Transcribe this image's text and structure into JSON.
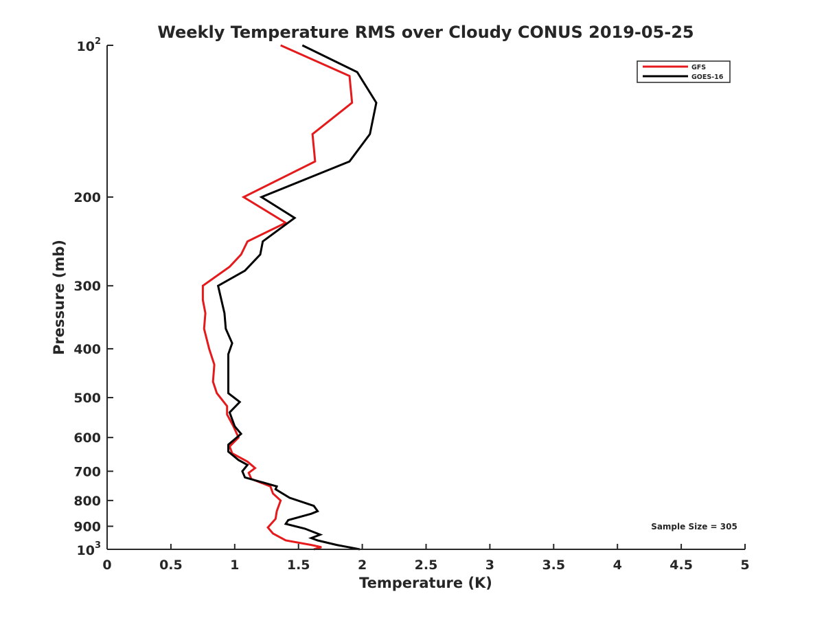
{
  "chart_data": {
    "type": "line",
    "title": "Weekly Temperature RMS over Cloudy CONUS 2019-05-25",
    "xlabel": "Temperature (K)",
    "ylabel": "Pressure (mb)",
    "xlim": [
      0,
      5
    ],
    "ylim": [
      100,
      1000
    ],
    "y_scale": "log",
    "y_reversed": true,
    "grid": false,
    "legend_position": "top-right",
    "x_ticks": [
      {
        "value": 0,
        "label": "0"
      },
      {
        "value": 0.5,
        "label": "0.5"
      },
      {
        "value": 1,
        "label": "1"
      },
      {
        "value": 1.5,
        "label": "1.5"
      },
      {
        "value": 2,
        "label": "2"
      },
      {
        "value": 2.5,
        "label": "2.5"
      },
      {
        "value": 3,
        "label": "3"
      },
      {
        "value": 3.5,
        "label": "3.5"
      },
      {
        "value": 4,
        "label": "4"
      },
      {
        "value": 4.5,
        "label": "4.5"
      },
      {
        "value": 5,
        "label": "5"
      }
    ],
    "y_ticks": [
      {
        "value": 100,
        "base": "10",
        "exp": "2"
      },
      {
        "value": 200,
        "label": "200"
      },
      {
        "value": 300,
        "label": "300"
      },
      {
        "value": 400,
        "label": "400"
      },
      {
        "value": 500,
        "label": "500"
      },
      {
        "value": 600,
        "label": "600"
      },
      {
        "value": 700,
        "label": "700"
      },
      {
        "value": 800,
        "label": "800"
      },
      {
        "value": 900,
        "label": "900"
      },
      {
        "value": 1000,
        "base": "10",
        "exp": "3"
      }
    ],
    "annotation": "Sample Size = 305",
    "series": [
      {
        "name": "GFS",
        "color": "#e41a1c",
        "points": [
          [
            1.36,
            100
          ],
          [
            1.9,
            115
          ],
          [
            1.92,
            130
          ],
          [
            1.61,
            150
          ],
          [
            1.63,
            170
          ],
          [
            1.07,
            200
          ],
          [
            1.4,
            225
          ],
          [
            1.1,
            245
          ],
          [
            1.05,
            260
          ],
          [
            0.96,
            275
          ],
          [
            0.75,
            300
          ],
          [
            0.75,
            320
          ],
          [
            0.77,
            340
          ],
          [
            0.76,
            365
          ],
          [
            0.8,
            400
          ],
          [
            0.84,
            430
          ],
          [
            0.83,
            465
          ],
          [
            0.86,
            490
          ],
          [
            0.94,
            520
          ],
          [
            0.94,
            540
          ],
          [
            0.99,
            570
          ],
          [
            1.03,
            600
          ],
          [
            0.96,
            625
          ],
          [
            0.98,
            645
          ],
          [
            1.1,
            670
          ],
          [
            1.16,
            690
          ],
          [
            1.11,
            705
          ],
          [
            1.13,
            725
          ],
          [
            1.28,
            750
          ],
          [
            1.3,
            775
          ],
          [
            1.36,
            800
          ],
          [
            1.33,
            840
          ],
          [
            1.32,
            870
          ],
          [
            1.26,
            905
          ],
          [
            1.3,
            930
          ],
          [
            1.4,
            960
          ],
          [
            1.6,
            980
          ],
          [
            1.68,
            990
          ],
          [
            1.62,
            1000
          ]
        ]
      },
      {
        "name": "GOES-16",
        "color": "#000000",
        "points": [
          [
            1.53,
            100
          ],
          [
            1.96,
            113
          ],
          [
            2.11,
            130
          ],
          [
            2.06,
            150
          ],
          [
            1.9,
            170
          ],
          [
            1.21,
            200
          ],
          [
            1.47,
            220
          ],
          [
            1.22,
            245
          ],
          [
            1.2,
            260
          ],
          [
            1.08,
            280
          ],
          [
            0.87,
            300
          ],
          [
            0.92,
            340
          ],
          [
            0.93,
            365
          ],
          [
            0.98,
            390
          ],
          [
            0.95,
            410
          ],
          [
            0.95,
            440
          ],
          [
            0.95,
            490
          ],
          [
            1.04,
            510
          ],
          [
            0.96,
            535
          ],
          [
            1.0,
            570
          ],
          [
            1.05,
            590
          ],
          [
            0.95,
            620
          ],
          [
            0.95,
            640
          ],
          [
            1.03,
            665
          ],
          [
            1.1,
            680
          ],
          [
            1.06,
            700
          ],
          [
            1.08,
            720
          ],
          [
            1.33,
            750
          ],
          [
            1.32,
            760
          ],
          [
            1.43,
            790
          ],
          [
            1.62,
            820
          ],
          [
            1.65,
            840
          ],
          [
            1.6,
            850
          ],
          [
            1.42,
            875
          ],
          [
            1.4,
            890
          ],
          [
            1.55,
            910
          ],
          [
            1.67,
            935
          ],
          [
            1.6,
            950
          ],
          [
            1.65,
            960
          ],
          [
            1.8,
            980
          ],
          [
            1.98,
            1000
          ]
        ]
      }
    ]
  }
}
